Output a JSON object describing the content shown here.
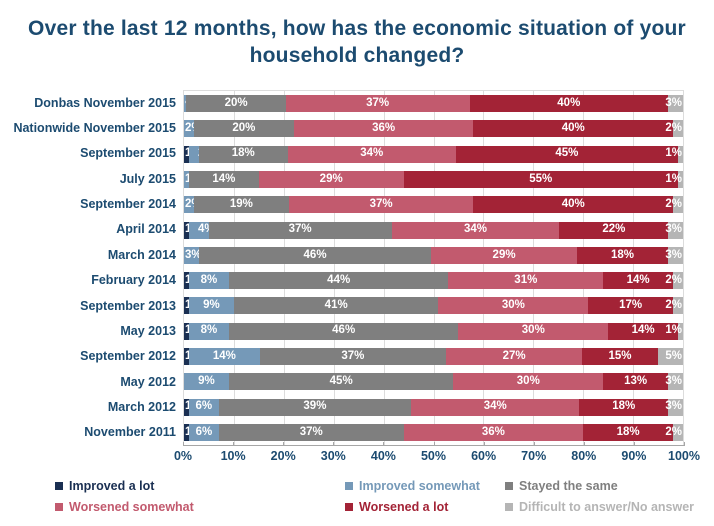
{
  "title": "Over the last 12 months, how has the economic situation of your household changed?",
  "colors": {
    "title": "#1c4b70",
    "axis_text": "#1c4b70",
    "axis_line": "#a6a6a6",
    "gridline": "#dcdcdc",
    "improved_a_lot": "#1a2f52",
    "improved_somewhat": "#7599b8",
    "stayed_the_same": "#7f7f7f",
    "worsened_somewhat": "#c25a6e",
    "worsened_a_lot": "#a32336",
    "difficult_to_answer": "#b5b5b5"
  },
  "legend": {
    "items": [
      {
        "label": "Improved a lot",
        "color_key": "improved_a_lot"
      },
      {
        "label": "Improved somewhat",
        "color_key": "improved_somewhat"
      },
      {
        "label": "Stayed the same",
        "color_key": "stayed_the_same"
      },
      {
        "label": "Worsened somewhat",
        "color_key": "worsened_somewhat"
      },
      {
        "label": "Worsened a lot",
        "color_key": "worsened_a_lot"
      },
      {
        "label": "Difficult to answer/No answer",
        "color_key": "difficult_to_answer"
      }
    ]
  },
  "chart_data": {
    "type": "bar",
    "orientation": "horizontal-stacked",
    "title": "Over the last 12 months, how has the economic situation of your household changed?",
    "xlim": [
      0,
      100
    ],
    "x_tick_labels": [
      "0%",
      "10%",
      "20%",
      "30%",
      "40%",
      "50%",
      "60%",
      "70%",
      "80%",
      "90%",
      "100%"
    ],
    "grid": true,
    "legend_position": "bottom",
    "series_keys": [
      "improved_a_lot",
      "improved_somewhat",
      "stayed_the_same",
      "worsened_somewhat",
      "worsened_a_lot",
      "difficult_to_answer"
    ],
    "series_names": [
      "Improved a lot",
      "Improved somewhat",
      "Stayed the same",
      "Worsened somewhat",
      "Worsened a lot",
      "Difficult to answer/No answer"
    ],
    "categories": [
      "Donbas November 2015",
      "Nationwide November 2015",
      "September 2015",
      "July 2015",
      "September 2014",
      "April 2014",
      "March 2014",
      "February 2014",
      "September 2013",
      "May 2013",
      "September 2012",
      "May 2012",
      "March 2012",
      "November 2011"
    ],
    "rows": [
      {
        "category": "Donbas November 2015",
        "values": [
          0,
          0.5,
          20,
          37,
          40,
          3
        ],
        "labels": [
          "",
          "<1%",
          "20%",
          "37%",
          "40%",
          "3%"
        ]
      },
      {
        "category": "Nationwide November 2015",
        "values": [
          0,
          2,
          20,
          36,
          40,
          2
        ],
        "labels": [
          "",
          "2%",
          "20%",
          "36%",
          "40%",
          "2%"
        ]
      },
      {
        "category": "September 2015",
        "values": [
          1,
          2,
          18,
          34,
          45,
          1
        ],
        "labels": [
          "1%",
          "2%",
          "18%",
          "34%",
          "45%",
          "1%"
        ]
      },
      {
        "category": "July 2015",
        "values": [
          0,
          1,
          14,
          29,
          55,
          1
        ],
        "labels": [
          "",
          "1%",
          "14%",
          "29%",
          "55%",
          "1%"
        ]
      },
      {
        "category": "September 2014",
        "values": [
          0,
          2,
          19,
          37,
          40,
          2
        ],
        "labels": [
          "",
          "2%",
          "19%",
          "37%",
          "40%",
          "2%"
        ]
      },
      {
        "category": "April 2014",
        "values": [
          1,
          4,
          37,
          34,
          22,
          3
        ],
        "labels": [
          "1%",
          "4%",
          "37%",
          "34%",
          "22%",
          "3%"
        ]
      },
      {
        "category": "March 2014",
        "values": [
          0,
          3,
          46,
          29,
          18,
          3
        ],
        "labels": [
          "",
          "3%",
          "46%",
          "29%",
          "18%",
          "3%"
        ]
      },
      {
        "category": "February 2014",
        "values": [
          1,
          8,
          44,
          31,
          14,
          2
        ],
        "labels": [
          "1%",
          "8%",
          "44%",
          "31%",
          "14%",
          "2%"
        ]
      },
      {
        "category": "September 2013",
        "values": [
          1,
          9,
          41,
          30,
          17,
          2
        ],
        "labels": [
          "1%",
          "9%",
          "41%",
          "30%",
          "17%",
          "2%"
        ]
      },
      {
        "category": "May 2013",
        "values": [
          1,
          8,
          46,
          30,
          14,
          1
        ],
        "labels": [
          "1%",
          "8%",
          "46%",
          "30%",
          "14%",
          "1%"
        ]
      },
      {
        "category": "September 2012",
        "values": [
          1,
          14,
          37,
          27,
          15,
          5
        ],
        "labels": [
          "1%",
          "14%",
          "37%",
          "27%",
          "15%",
          "5%"
        ]
      },
      {
        "category": "May 2012",
        "values": [
          0,
          9,
          45,
          30,
          13,
          3
        ],
        "labels": [
          "",
          "9%",
          "45%",
          "30%",
          "13%",
          "3%"
        ]
      },
      {
        "category": "March 2012",
        "values": [
          1,
          6,
          39,
          34,
          18,
          3
        ],
        "labels": [
          "1%",
          "6%",
          "39%",
          "34%",
          "18%",
          "3%"
        ]
      },
      {
        "category": "November 2011",
        "values": [
          1,
          6,
          37,
          36,
          18,
          2
        ],
        "labels": [
          "1%",
          "6%",
          "37%",
          "36%",
          "18%",
          "2%"
        ]
      }
    ]
  }
}
